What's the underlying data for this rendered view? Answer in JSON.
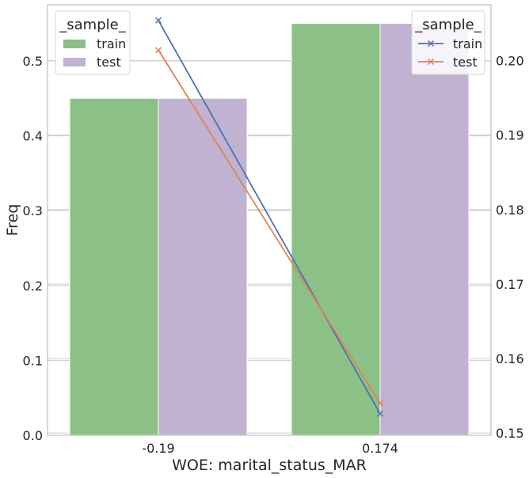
{
  "chart_data": {
    "type": "bar+line",
    "categories": [
      "-0.19",
      "0.174"
    ],
    "xlabel": "WOE: marital_status_MAR",
    "ylabel": "Freq",
    "ylabel_right": "",
    "ylim": [
      0,
      0.575
    ],
    "ylim_right": [
      0.1497,
      0.2075
    ],
    "yticks": [
      "0.0",
      "0.1",
      "0.2",
      "0.3",
      "0.4",
      "0.5"
    ],
    "yticks_right": [
      "0.15",
      "0.16",
      "0.17",
      "0.18",
      "0.19",
      "0.20"
    ],
    "grid": true,
    "bar_series": [
      {
        "name": "train",
        "values": [
          0.45,
          0.55
        ],
        "color": "#8bc087"
      },
      {
        "name": "test",
        "values": [
          0.45,
          0.55
        ],
        "color": "#c1b2d1"
      }
    ],
    "line_series": [
      {
        "name": "train",
        "values": [
          0.2054,
          0.1526
        ],
        "color": "#4c72b0",
        "marker": "x"
      },
      {
        "name": "test",
        "values": [
          0.2014,
          0.154
        ],
        "color": "#dd8452",
        "marker": "x"
      }
    ],
    "legends": [
      {
        "title": "_sample_",
        "placement": "top-left",
        "kind": "bars"
      },
      {
        "title": "_sample_",
        "placement": "top-right",
        "kind": "lines"
      }
    ]
  }
}
